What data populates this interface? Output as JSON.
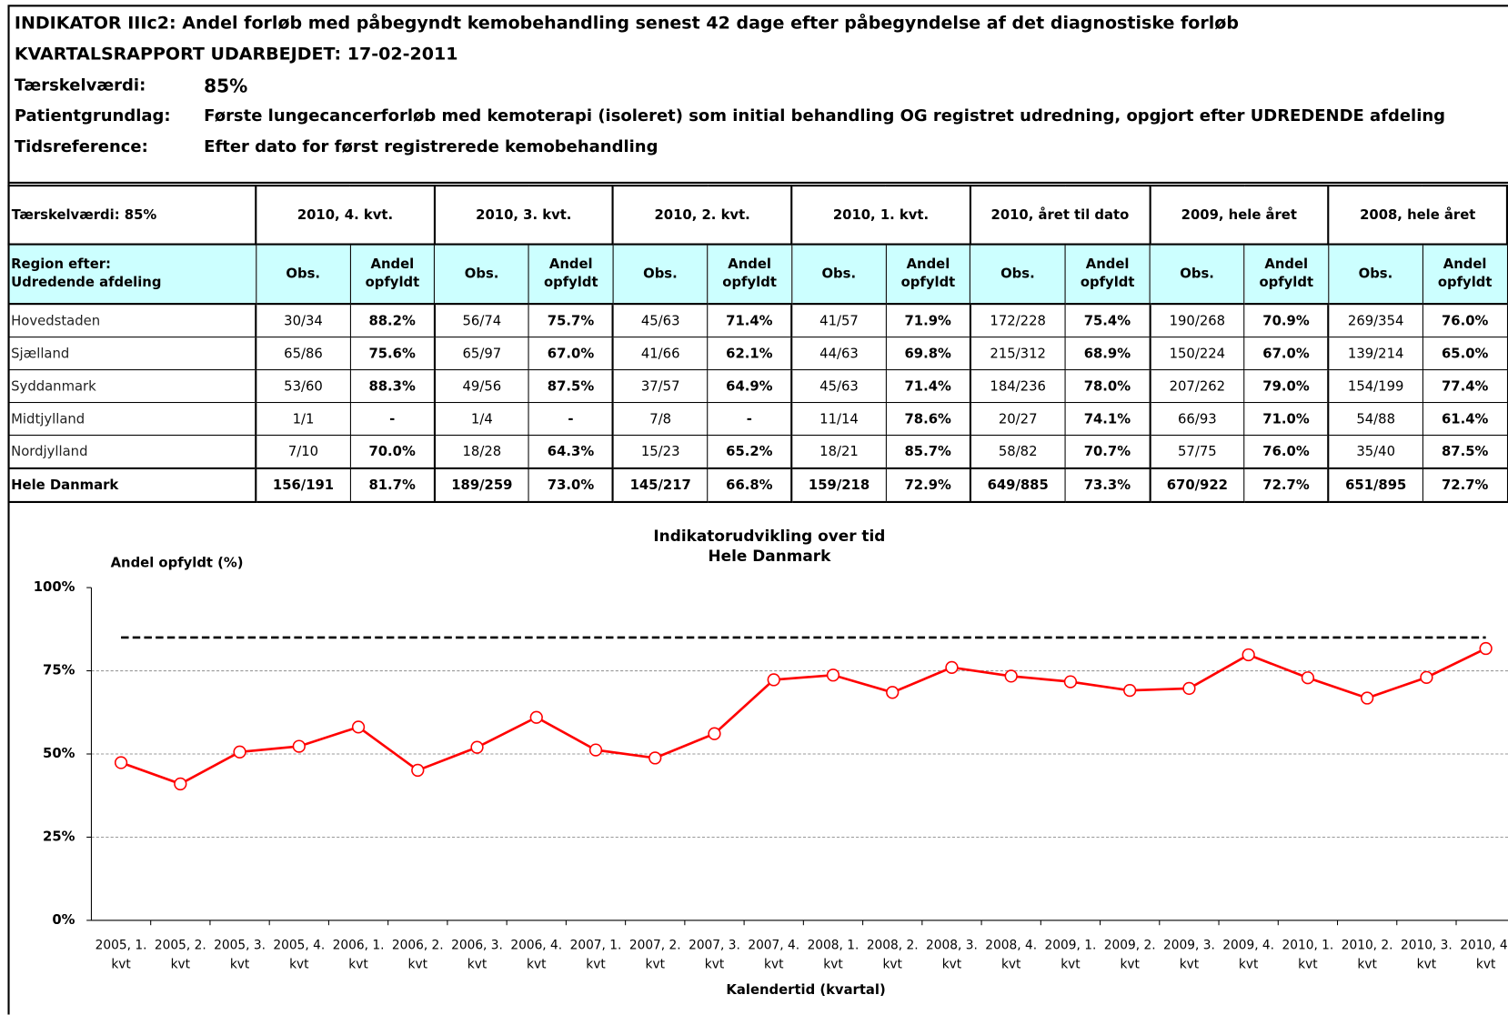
{
  "header": {
    "title": "INDIKATOR IIIc2: Andel forløb med påbegyndt kemobehandling senest 42 dage efter påbegyndelse af det diagnostiske forløb",
    "report_date": "KVARTALSRAPPORT UDARBEJDET: 17-02-2011",
    "fields": [
      {
        "label": "Tærskelværdi:",
        "value": "85%"
      },
      {
        "label": "Patientgrundlag:",
        "value": "Første lungecancerforløb med kemoterapi (isoleret) som initial behandling OG registret udredning, opgjort efter UDREDENDE afdeling"
      },
      {
        "label": "Tidsreference:",
        "value": "Efter dato for først registrerede kemobehandling"
      }
    ]
  },
  "table": {
    "corner": "Tærskelværdi:  85%",
    "groups": [
      "2010, 4. kvt.",
      "2010, 3. kvt.",
      "2010, 2. kvt.",
      "2010, 1. kvt.",
      "2010, året til dato",
      "2009, hele året",
      "2008, hele året"
    ],
    "region_header": "Region efter:\nUdredende afdeling",
    "sub_headers": [
      "Obs.",
      "Andel opfyldt"
    ],
    "rows": [
      {
        "name": "Hovedstaden",
        "cells": [
          "30/34",
          "88.2%",
          "56/74",
          "75.7%",
          "45/63",
          "71.4%",
          "41/57",
          "71.9%",
          "172/228",
          "75.4%",
          "190/268",
          "70.9%",
          "269/354",
          "76.0%"
        ]
      },
      {
        "name": "Sjælland",
        "cells": [
          "65/86",
          "75.6%",
          "65/97",
          "67.0%",
          "41/66",
          "62.1%",
          "44/63",
          "69.8%",
          "215/312",
          "68.9%",
          "150/224",
          "67.0%",
          "139/214",
          "65.0%"
        ]
      },
      {
        "name": "Syddanmark",
        "cells": [
          "53/60",
          "88.3%",
          "49/56",
          "87.5%",
          "37/57",
          "64.9%",
          "45/63",
          "71.4%",
          "184/236",
          "78.0%",
          "207/262",
          "79.0%",
          "154/199",
          "77.4%"
        ]
      },
      {
        "name": "Midtjylland",
        "cells": [
          "1/1",
          "-",
          "1/4",
          "-",
          "7/8",
          "-",
          "11/14",
          "78.6%",
          "20/27",
          "74.1%",
          "66/93",
          "71.0%",
          "54/88",
          "61.4%"
        ]
      },
      {
        "name": "Nordjylland",
        "cells": [
          "7/10",
          "70.0%",
          "18/28",
          "64.3%",
          "15/23",
          "65.2%",
          "18/21",
          "85.7%",
          "58/82",
          "70.7%",
          "57/75",
          "76.0%",
          "35/40",
          "87.5%"
        ]
      },
      {
        "name": "Hele Danmark",
        "cells": [
          "156/191",
          "81.7%",
          "189/259",
          "73.0%",
          "145/217",
          "66.8%",
          "159/218",
          "72.9%",
          "649/885",
          "73.3%",
          "670/922",
          "72.7%",
          "651/895",
          "72.7%"
        ]
      }
    ]
  },
  "chart_data": {
    "type": "line",
    "title": "Indikatorudvikling over tid",
    "subtitle": "Hele Danmark",
    "ylabel": "Andel opfyldt (%)",
    "xlabel": "Kalendertid (kvartal)",
    "categories": [
      "2005, 1. kvt",
      "2005, 2. kvt",
      "2005, 3. kvt",
      "2005, 4. kvt",
      "2006, 1. kvt",
      "2006, 2. kvt",
      "2006, 3. kvt",
      "2006, 4. kvt",
      "2007, 1. kvt",
      "2007, 2. kvt",
      "2007, 3. kvt",
      "2007, 4. kvt",
      "2008, 1. kvt",
      "2008, 2. kvt",
      "2008, 3. kvt",
      "2008, 4. kvt",
      "2009, 1. kvt",
      "2009, 2. kvt",
      "2009, 3. kvt",
      "2009, 4. kvt",
      "2010, 1. kvt",
      "2010, 2. kvt",
      "2010, 3. kvt",
      "2010, 4. kvt"
    ],
    "values": [
      47.4,
      41.0,
      50.6,
      52.3,
      58.1,
      45.1,
      52.0,
      61.0,
      51.2,
      48.8,
      56.1,
      72.3,
      73.7,
      68.5,
      76.0,
      73.4,
      71.7,
      69.1,
      69.7,
      79.8,
      72.9,
      66.8,
      73.0,
      81.7
    ],
    "color": "#ff0000",
    "threshold": 85,
    "ylim": [
      0,
      100
    ],
    "yticks": [
      {
        "value": 0,
        "label": "0%"
      },
      {
        "value": 25,
        "label": "25%"
      },
      {
        "value": 50,
        "label": "50%"
      },
      {
        "value": 75,
        "label": "75%"
      },
      {
        "value": 100,
        "label": "100%"
      }
    ],
    "grid": true
  }
}
